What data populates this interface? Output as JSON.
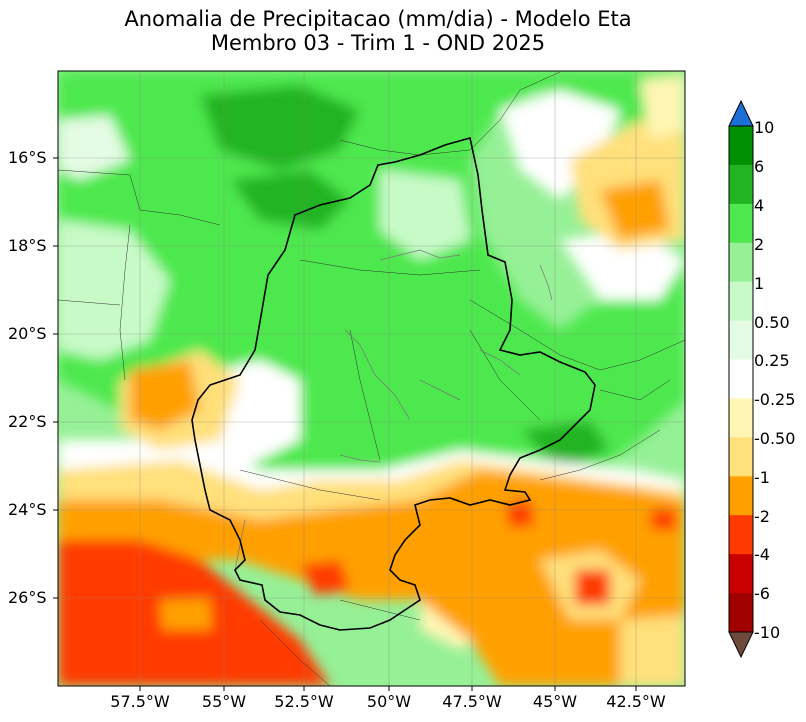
{
  "title": {
    "line1": "Anomalia de Precipitacao (mm/dia) - Modelo Eta",
    "line2": "Membro 03 - Trim 1 - OND 2025"
  },
  "axes": {
    "lat_ticks": [
      "16°S",
      "18°S",
      "20°S",
      "22°S",
      "24°S",
      "26°S"
    ],
    "lon_ticks": [
      "57.5°W",
      "55°W",
      "52.5°W",
      "50°W",
      "47.5°W",
      "45°W",
      "42.5°W"
    ],
    "lat_range": [
      -28,
      -14.2
    ],
    "lon_range": [
      -60,
      -41.5
    ]
  },
  "colorbar": {
    "labels": [
      "10",
      "6",
      "4",
      "2",
      "1",
      "0.50",
      "0.25",
      "-0.25",
      "-0.50",
      "-1",
      "-2",
      "-4",
      "-6",
      "-10"
    ],
    "colors": [
      "#1c6fd6",
      "#008f00",
      "#22b422",
      "#4ee84e",
      "#96f096",
      "#c8fac8",
      "#e4fbe4",
      "#ffffff",
      "#fff6b4",
      "#ffe07a",
      "#ffa000",
      "#ff3a00",
      "#c80000",
      "#a00000",
      "#6e4a3c"
    ]
  },
  "map_colors": {
    "ocean_neutral": "#ffffff",
    "dark_green": "#22b422",
    "green": "#4ee84e",
    "light_green": "#96f096",
    "pale_green": "#c8fac8",
    "yellow": "#ffe07a",
    "pale_yellow": "#fff6b4",
    "orange": "#ffa000",
    "red": "#ff3a00"
  }
}
